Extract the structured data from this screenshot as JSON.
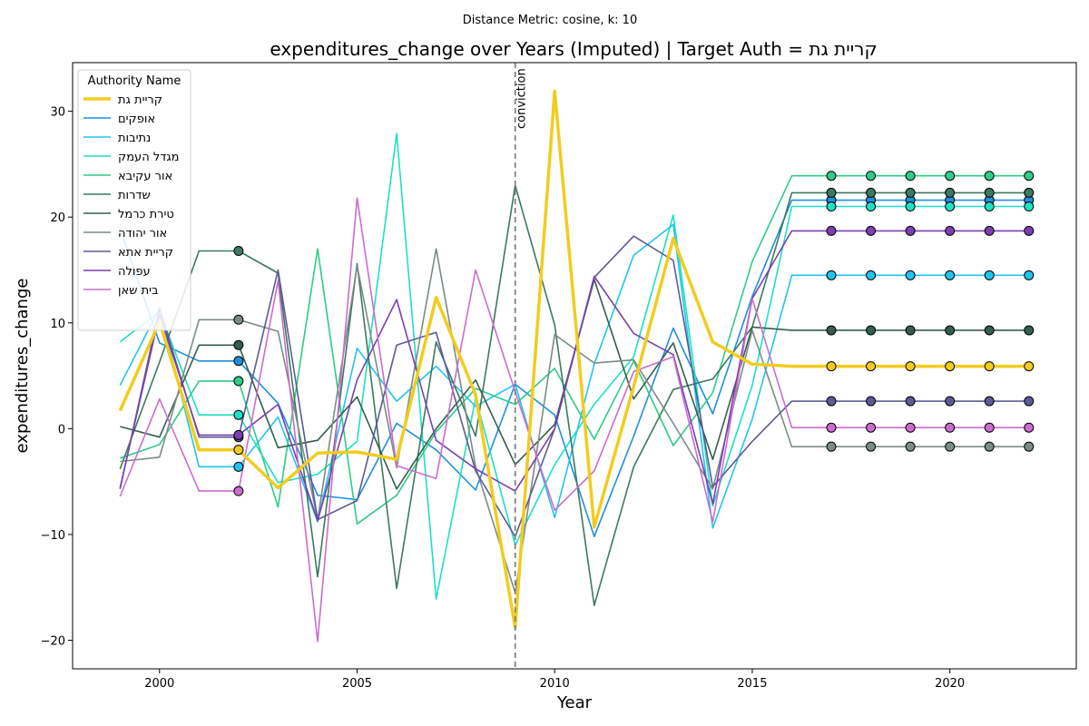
{
  "chart_data": {
    "type": "line",
    "subtitle": "Distance Metric: cosine, k: 10",
    "title": "expenditures_change over Years (Imputed) | Target Auth = קריית גת",
    "xlabel": "Year",
    "ylabel": "expenditures_change",
    "xlim": [
      1997.8,
      2023.2
    ],
    "ylim": [
      -22.7,
      34.6
    ],
    "xticks": [
      2000,
      2005,
      2010,
      2015,
      2020
    ],
    "yticks": [
      -20,
      -10,
      0,
      10,
      20,
      30
    ],
    "grid": false,
    "legend": {
      "title": "Authority Name",
      "placement": "top-left"
    },
    "vline": {
      "x": 2009,
      "label": "conviction"
    },
    "series": [
      {
        "name": "קריית גת",
        "color": "#f2cc1f",
        "width": 3.5,
        "target": true,
        "x": [
          1999,
          2000,
          2001,
          2002,
          2003,
          2004,
          2005,
          2006,
          2007,
          2008,
          2009,
          2010,
          2011,
          2012,
          2013,
          2014,
          2015,
          2016,
          2017,
          2018,
          2019,
          2020,
          2021,
          2022
        ],
        "y": [
          1.7,
          10.1,
          -2.0,
          -2.0,
          -5.6,
          -2.3,
          -2.2,
          -2.9,
          12.4,
          3.2,
          -18.8,
          31.9,
          -9.3,
          4.0,
          18.0,
          8.2,
          6.1,
          5.9,
          5.9,
          5.9,
          5.9,
          5.9,
          5.9,
          5.9
        ],
        "markers_x": [
          2002,
          2017,
          2018,
          2019,
          2020,
          2021,
          2022
        ]
      },
      {
        "name": "אופקים",
        "color": "#1f8ee0",
        "width": 1.6,
        "x": [
          1999,
          2000,
          2001,
          2002,
          2003,
          2004,
          2005,
          2006,
          2007,
          2008,
          2009,
          2010,
          2011,
          2012,
          2013,
          2014,
          2015,
          2016,
          2017,
          2018,
          2019,
          2020,
          2021,
          2022
        ],
        "y": [
          18.9,
          8.1,
          6.4,
          6.4,
          2.4,
          -6.3,
          -6.7,
          0.5,
          -2.0,
          -5.8,
          4.2,
          1.3,
          -10.2,
          -0.7,
          9.5,
          1.4,
          12.5,
          21.6,
          21.6,
          21.6,
          21.6,
          21.6,
          21.6,
          21.6
        ],
        "markers_x": [
          2002,
          2017,
          2018,
          2019,
          2020,
          2021,
          2022
        ]
      },
      {
        "name": "נתיבות",
        "color": "#22c4ee",
        "width": 1.6,
        "x": [
          1999,
          2000,
          2001,
          2002,
          2003,
          2004,
          2005,
          2006,
          2007,
          2008,
          2009,
          2010,
          2011,
          2012,
          2013,
          2014,
          2015,
          2016,
          2017,
          2018,
          2019,
          2020,
          2021,
          2022
        ],
        "y": [
          4.1,
          11.4,
          -3.6,
          -3.6,
          1.1,
          -8.8,
          7.6,
          2.6,
          5.9,
          2.1,
          4.2,
          -8.4,
          6.1,
          16.4,
          19.3,
          -9.4,
          0.9,
          14.5,
          14.5,
          14.5,
          14.5,
          14.5,
          14.5,
          14.5
        ],
        "markers_x": [
          2002,
          2017,
          2018,
          2019,
          2020,
          2021,
          2022
        ]
      },
      {
        "name": "מגדל העמק",
        "color": "#1ee0c4",
        "width": 1.6,
        "x": [
          1999,
          2000,
          2001,
          2002,
          2003,
          2004,
          2005,
          2006,
          2007,
          2008,
          2009,
          2010,
          2011,
          2012,
          2013,
          2014,
          2015,
          2016,
          2017,
          2018,
          2019,
          2020,
          2021,
          2022
        ],
        "y": [
          8.2,
          11.1,
          1.3,
          1.3,
          -5.1,
          -4.3,
          -1.2,
          27.9,
          -16.1,
          2.9,
          -11.0,
          -3.4,
          2.3,
          6.8,
          20.2,
          -7.3,
          4.1,
          21.0,
          21.0,
          21.0,
          21.0,
          21.0,
          21.0,
          21.0
        ],
        "markers_x": [
          2002,
          2017,
          2018,
          2019,
          2020,
          2021,
          2022
        ]
      },
      {
        "name": "אור עקיבא",
        "color": "#2ecc86",
        "width": 1.6,
        "x": [
          1999,
          2000,
          2001,
          2002,
          2003,
          2004,
          2005,
          2006,
          2007,
          2008,
          2009,
          2010,
          2011,
          2012,
          2013,
          2014,
          2015,
          2016,
          2017,
          2018,
          2019,
          2020,
          2021,
          2022
        ],
        "y": [
          -2.8,
          -1.5,
          4.5,
          4.5,
          -7.4,
          17.0,
          -9.0,
          -6.3,
          -0.3,
          3.8,
          2.3,
          5.7,
          -1.0,
          6.4,
          -1.6,
          3.4,
          15.8,
          23.9,
          23.9,
          23.9,
          23.9,
          23.9,
          23.9,
          23.9
        ],
        "markers_x": [
          2002,
          2017,
          2018,
          2019,
          2020,
          2021,
          2022
        ]
      },
      {
        "name": "שדרות",
        "color": "#3a7a5e",
        "width": 1.6,
        "x": [
          1999,
          2000,
          2001,
          2002,
          2003,
          2004,
          2005,
          2006,
          2007,
          2008,
          2009,
          2010,
          2011,
          2012,
          2013,
          2014,
          2015,
          2016,
          2017,
          2018,
          2019,
          2020,
          2021,
          2022
        ],
        "y": [
          -3.8,
          6.3,
          16.8,
          16.8,
          14.7,
          -14.0,
          15.6,
          -15.1,
          8.2,
          -0.7,
          23.0,
          9.8,
          -16.7,
          -3.6,
          3.7,
          4.7,
          9.6,
          22.3,
          22.3,
          22.3,
          22.3,
          22.3,
          22.3,
          22.3
        ],
        "markers_x": [
          2002,
          2017,
          2018,
          2019,
          2020,
          2021,
          2022
        ]
      },
      {
        "name": "טירת כרמל",
        "color": "#335e4e",
        "width": 1.6,
        "x": [
          1999,
          2000,
          2001,
          2002,
          2003,
          2004,
          2005,
          2006,
          2007,
          2008,
          2009,
          2010,
          2011,
          2012,
          2013,
          2014,
          2015,
          2016,
          2017,
          2018,
          2019,
          2020,
          2021,
          2022
        ],
        "y": [
          0.2,
          -0.8,
          7.9,
          7.9,
          -1.8,
          -1.1,
          3.0,
          -5.7,
          0.0,
          4.6,
          -3.4,
          0.4,
          14.1,
          2.8,
          8.1,
          -2.9,
          9.6,
          9.3,
          9.3,
          9.3,
          9.3,
          9.3,
          9.3,
          9.3
        ],
        "markers_x": [
          2002,
          2017,
          2018,
          2019,
          2020,
          2021,
          2022
        ]
      },
      {
        "name": "אור יהודה",
        "color": "#7a8c86",
        "width": 1.6,
        "x": [
          1999,
          2000,
          2001,
          2002,
          2003,
          2004,
          2005,
          2006,
          2007,
          2008,
          2009,
          2010,
          2011,
          2012,
          2013,
          2014,
          2015,
          2016,
          2017,
          2018,
          2019,
          2020,
          2021,
          2022
        ],
        "y": [
          -3.1,
          -2.7,
          10.3,
          10.3,
          9.2,
          -8.6,
          15.4,
          -3.7,
          17.0,
          -3.6,
          -15.5,
          8.9,
          6.2,
          6.5,
          0.5,
          -5.7,
          9.3,
          -1.7,
          -1.7,
          -1.7,
          -1.7,
          -1.7,
          -1.7,
          -1.7
        ],
        "markers_x": [
          2002,
          2017,
          2018,
          2019,
          2020,
          2021,
          2022
        ]
      },
      {
        "name": "קריית אתא",
        "color": "#5c5a96",
        "width": 1.6,
        "x": [
          1999,
          2000,
          2001,
          2002,
          2003,
          2004,
          2005,
          2006,
          2007,
          2008,
          2009,
          2010,
          2011,
          2012,
          2013,
          2014,
          2015,
          2016,
          2017,
          2018,
          2019,
          2020,
          2021,
          2022
        ],
        "y": [
          -5.7,
          11.4,
          -0.8,
          -0.8,
          15.0,
          -8.6,
          -6.8,
          7.9,
          9.1,
          -4.0,
          -10.2,
          0.0,
          14.3,
          18.2,
          15.9,
          -5.5,
          -1.2,
          2.6,
          2.6,
          2.6,
          2.6,
          2.6,
          2.6,
          2.6
        ],
        "markers_x": [
          2002,
          2017,
          2018,
          2019,
          2020,
          2021,
          2022
        ]
      },
      {
        "name": "עפולה",
        "color": "#7a3fb0",
        "width": 1.6,
        "x": [
          1999,
          2000,
          2001,
          2002,
          2003,
          2004,
          2005,
          2006,
          2007,
          2008,
          2009,
          2010,
          2011,
          2012,
          2013,
          2014,
          2015,
          2016,
          2017,
          2018,
          2019,
          2020,
          2021,
          2022
        ],
        "y": [
          -5.6,
          10.8,
          -0.6,
          -0.6,
          2.3,
          -8.7,
          4.6,
          12.2,
          -1.1,
          -3.8,
          -5.9,
          0.0,
          14.4,
          9.0,
          7.0,
          -7.1,
          12.3,
          18.7,
          18.7,
          18.7,
          18.7,
          18.7,
          18.7,
          18.7
        ],
        "markers_x": [
          2002,
          2017,
          2018,
          2019,
          2020,
          2021,
          2022
        ]
      },
      {
        "name": "בית שאן",
        "color": "#cc6ccf",
        "width": 1.6,
        "x": [
          1999,
          2000,
          2001,
          2002,
          2003,
          2004,
          2005,
          2006,
          2007,
          2008,
          2009,
          2010,
          2011,
          2012,
          2013,
          2014,
          2015,
          2016,
          2017,
          2018,
          2019,
          2020,
          2021,
          2022
        ],
        "y": [
          -6.4,
          2.8,
          -5.9,
          -5.9,
          14.0,
          -20.1,
          21.8,
          -3.5,
          -4.7,
          15.0,
          3.5,
          -7.7,
          -4.0,
          5.4,
          6.8,
          -8.8,
          12.3,
          0.1,
          0.1,
          0.1,
          0.1,
          0.1,
          0.1,
          0.1
        ],
        "markers_x": [
          2002,
          2017,
          2018,
          2019,
          2020,
          2021,
          2022
        ]
      }
    ]
  }
}
